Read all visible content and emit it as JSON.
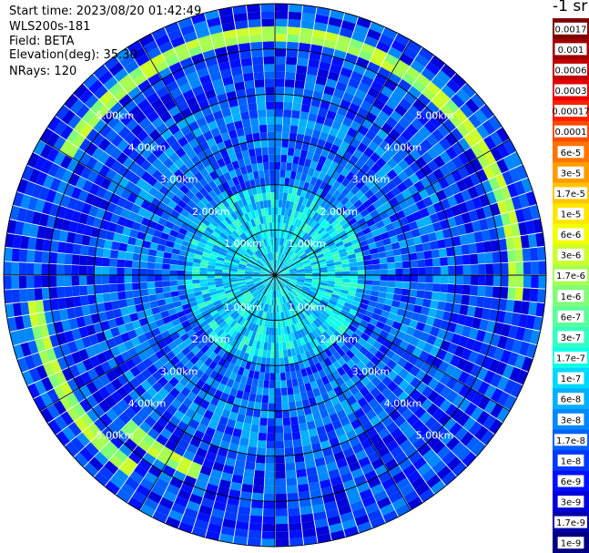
{
  "header": {
    "start_time": "Start time: 2023/08/20 01:42:49",
    "instrument": "WLS200s-181",
    "field": "Field: BETA",
    "elevation": "Elevation(deg): 35.30",
    "nrays": "NRays: 120"
  },
  "chart_data": {
    "type": "heatmap",
    "projection": "polar-ppi",
    "field": "BETA",
    "n_rays": 120,
    "max_range_km": 6.0,
    "range_rings_km": [
      1,
      2,
      3,
      4,
      5
    ],
    "ring_labels": [
      "1.00km",
      "2.00km",
      "3.00km",
      "4.00km",
      "5.00km"
    ],
    "spoke_count": 12,
    "colorbar_unit": "-1 sr",
    "colorbar_ticks": [
      "0.0017",
      "0.001",
      "0.0006",
      "0.0003",
      "0.00017",
      "0.0001",
      "6e-5",
      "3e-5",
      "1.7e-5",
      "1e-5",
      "6e-6",
      "3e-6",
      "1.7e-6",
      "1e-6",
      "6e-7",
      "3e-7",
      "1.7e-7",
      "1e-7",
      "6e-8",
      "3e-8",
      "1.7e-8",
      "1e-8",
      "6e-9",
      "3e-9",
      "1.7e-9",
      "1e-9"
    ],
    "colorbar_colors": [
      "#800000",
      "#9e0000",
      "#c20000",
      "#e60000",
      "#ff2000",
      "#ff4a00",
      "#ff7400",
      "#ff9c00",
      "#ffc400",
      "#ffe600",
      "#f2ff06",
      "#cdff2a",
      "#a6ff51",
      "#80ff77",
      "#5cff9b",
      "#36ffc1",
      "#10ffe7",
      "#00d8ff",
      "#00b0ff",
      "#0088ff",
      "#0060ff",
      "#0038ff",
      "#0010ff",
      "#0000d8",
      "#0000a8",
      "#000080"
    ],
    "typical_levels": {
      "inner_km_0_2": "1e-7",
      "mid_km_2_4": "1.7e-8",
      "outer_km_4_6": "1e-8"
    },
    "features": [
      {
        "description": "arc of enhanced backscatter near 5.4 km",
        "level": "3e-6"
      }
    ]
  }
}
